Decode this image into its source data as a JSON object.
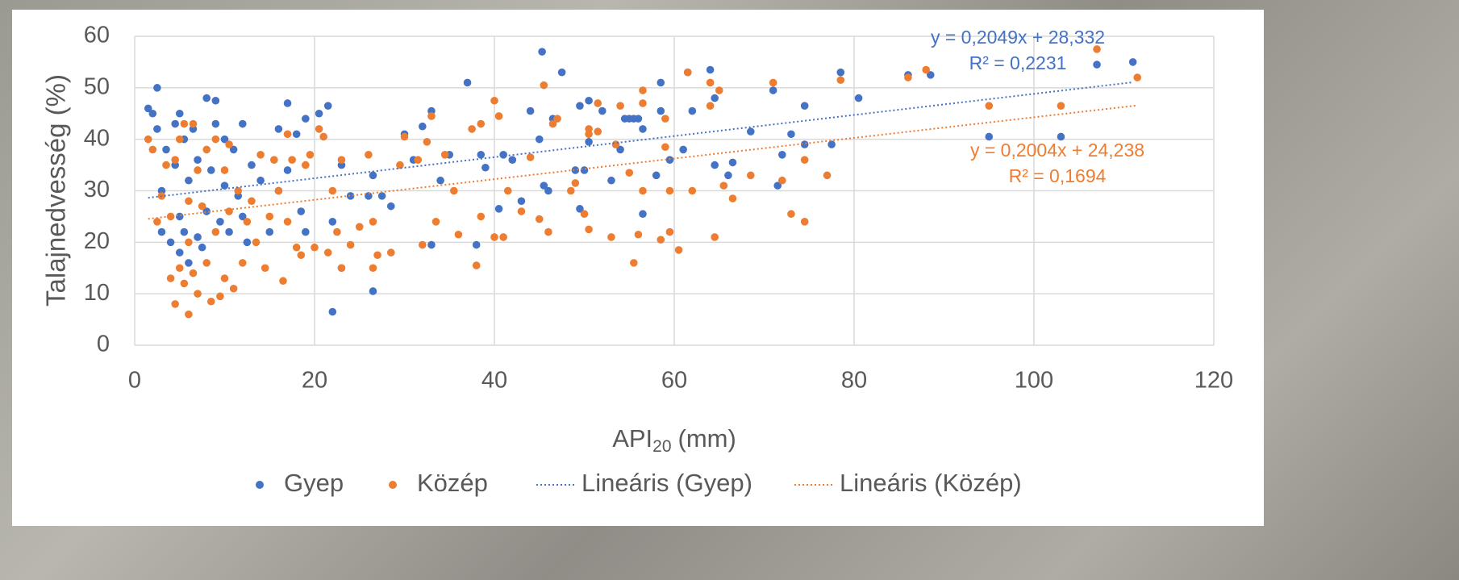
{
  "chart_data": {
    "type": "scatter",
    "y_label": "Talajnedvesség (%)",
    "x_label_parts": [
      "API",
      "20",
      "(mm)"
    ],
    "xlim": [
      0,
      120
    ],
    "xticks": [
      0,
      20,
      40,
      60,
      80,
      100,
      120
    ],
    "ylim": [
      0,
      60
    ],
    "yticks": [
      0,
      10,
      20,
      30,
      40,
      50,
      60
    ],
    "grid": true,
    "legend": "bottom",
    "series": [
      {
        "name": "Gyep",
        "color": "#4472c4",
        "x": [
          1.5,
          2,
          2.5,
          2.5,
          3,
          3,
          3.5,
          4,
          4.5,
          4.5,
          5,
          5,
          5,
          5.5,
          5.5,
          6,
          6,
          6.5,
          7,
          7,
          7.5,
          8,
          8,
          8.5,
          9,
          9,
          9.5,
          10,
          10,
          10.5,
          11,
          11.5,
          12,
          12,
          12.5,
          13,
          14,
          15,
          16,
          16,
          17,
          17,
          18,
          18.5,
          19,
          19,
          20.5,
          21.5,
          22,
          22,
          23,
          23,
          24,
          26,
          26.5,
          26.5,
          27.5,
          28.5,
          30,
          31,
          32,
          33,
          33,
          34,
          35,
          37,
          38,
          38.5,
          39,
          40.5,
          41,
          42,
          43,
          44,
          45,
          45.3,
          45.5,
          46,
          46.5,
          47.5,
          49,
          49.5,
          49.5,
          50,
          50.5,
          50.5,
          52,
          53,
          54,
          54.5,
          55,
          55.5,
          56,
          56.5,
          56.5,
          58,
          58.5,
          58.5,
          59.5,
          61,
          61.5,
          62,
          64,
          64.5,
          64.5,
          66,
          66.5,
          68.5,
          71,
          71.5,
          72,
          73,
          74.5,
          74.5,
          77.5,
          78.5,
          80.5,
          86,
          88.5,
          95,
          103,
          107,
          111
        ],
        "values": [
          46,
          45,
          50,
          42,
          30,
          22,
          38,
          20,
          43,
          35,
          45,
          25,
          18,
          40,
          22,
          32,
          16,
          42,
          21,
          36,
          19,
          48,
          26,
          34,
          47.5,
          43,
          24,
          31,
          40,
          22,
          38,
          29,
          43,
          25,
          20,
          35,
          32,
          22,
          42,
          30,
          47,
          34,
          41,
          26,
          44,
          22,
          45,
          46.5,
          24,
          6.5,
          35,
          15,
          29,
          29,
          33,
          10.5,
          29,
          27,
          41,
          36,
          42.5,
          45.5,
          19.5,
          32,
          37,
          51,
          19.5,
          37,
          34.5,
          26.5,
          37,
          36,
          28,
          45.5,
          40,
          57,
          31,
          30,
          44,
          53,
          34,
          46.5,
          26.5,
          34,
          47.5,
          39.5,
          45.5,
          32,
          38,
          44,
          44,
          44,
          44,
          25.5,
          42,
          33,
          51,
          45.5,
          36,
          38,
          53,
          45.5,
          53.5,
          48,
          35,
          33,
          35.5,
          41.5,
          49.5,
          31,
          37,
          41,
          46.5,
          39,
          39,
          53,
          48,
          52.5,
          52.5,
          40.5,
          40.5,
          54.5,
          55
        ]
      },
      {
        "name": "Közép",
        "color": "#ed7d31",
        "x": [
          1.5,
          2,
          2.5,
          3,
          3.5,
          4,
          4,
          4.5,
          4.5,
          5,
          5,
          5.5,
          5.5,
          6,
          6,
          6,
          6.5,
          6.5,
          7,
          7,
          7.5,
          8,
          8,
          8.5,
          9,
          9,
          9.5,
          10,
          10,
          10.5,
          10.5,
          11,
          11.5,
          12,
          12.5,
          13,
          13.5,
          14,
          14.5,
          15,
          15.5,
          16,
          16.5,
          17,
          17,
          17.5,
          18,
          18.5,
          19,
          19.5,
          20,
          20.5,
          21,
          21.5,
          22,
          22.5,
          23,
          23,
          24,
          25,
          26,
          26.5,
          26.5,
          27,
          28.5,
          29.5,
          30,
          31.5,
          32,
          32.5,
          33,
          33.5,
          34.5,
          35.5,
          36,
          37.5,
          38,
          38.5,
          38.5,
          40,
          40,
          40.5,
          41,
          41.5,
          43,
          44,
          45,
          45.5,
          46,
          46.5,
          47,
          48.5,
          49,
          50,
          50.5,
          50.5,
          50.5,
          51.5,
          51.5,
          53,
          53.5,
          54,
          55,
          55.5,
          56,
          56.5,
          56.5,
          56.5,
          58.5,
          59,
          59,
          59.5,
          59.5,
          60.5,
          61.5,
          62,
          64,
          64,
          64.5,
          65,
          65.5,
          66.5,
          68.5,
          71,
          72,
          73,
          74.5,
          74.5,
          77,
          78.5,
          86,
          88,
          95,
          103,
          107,
          111.5
        ],
        "values": [
          40,
          38,
          24,
          29,
          35,
          13,
          25,
          36,
          8,
          40,
          15,
          12,
          43,
          6,
          28,
          20,
          14,
          43,
          34,
          10,
          27,
          16,
          38,
          8.5,
          40,
          22,
          9.5,
          34,
          13,
          26,
          39,
          11,
          30,
          16,
          24,
          28,
          20,
          37,
          15,
          25,
          36,
          30,
          12.5,
          41,
          24,
          36,
          19,
          17.5,
          35,
          37,
          19,
          42,
          40.5,
          18,
          30,
          22,
          15,
          36,
          19.5,
          23,
          37,
          15,
          24,
          17.5,
          18,
          35,
          40.5,
          36,
          19.5,
          39.5,
          44.5,
          24,
          37,
          30,
          21.5,
          42,
          15.5,
          43,
          25,
          47.5,
          21,
          44.5,
          21,
          30,
          26,
          36.5,
          24.5,
          50.5,
          22,
          43,
          44,
          30,
          31.5,
          25.5,
          22.5,
          42,
          41,
          47,
          41.5,
          21,
          39,
          46.5,
          33.5,
          16,
          21.5,
          47,
          49.5,
          30,
          20.5,
          44,
          38.5,
          22,
          30,
          18.5,
          53,
          30,
          51,
          46.5,
          21,
          49.5,
          31,
          28.5,
          33,
          51,
          32,
          25.5,
          24,
          36,
          33,
          51.5,
          52,
          53.5,
          46.5,
          46.5,
          57.5,
          52
        ]
      }
    ],
    "trendlines": [
      {
        "name": "Lineáris (Gyep)",
        "series": 0,
        "color": "#4472c4",
        "slope": 0.2049,
        "intercept": 28.332,
        "equation": "y = 0,2049x + 28,332",
        "r2": "R² = 0,2231"
      },
      {
        "name": "Lineáris (Közép)",
        "series": 1,
        "color": "#ed7d31",
        "slope": 0.2004,
        "intercept": 24.238,
        "equation": "y = 0,2004x + 24,238",
        "r2": "R² = 0,1694"
      }
    ]
  }
}
